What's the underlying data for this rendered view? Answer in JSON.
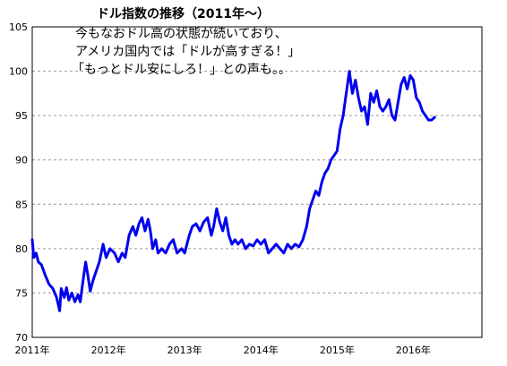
{
  "chart_data": {
    "type": "line",
    "title_lines": [
      "ドル指数の推移（2011年～）",
      "今もなおドル高の状態が続いており、",
      "アメリカ国内では「ドルが高すぎる！」",
      "「もっとドル安にしろ！」との声も。。"
    ],
    "xlabel": "",
    "ylabel": "",
    "ylim": [
      70,
      105
    ],
    "xlim": [
      2011.0,
      2016.9
    ],
    "yticks": [
      "70",
      "75",
      "80",
      "85",
      "90",
      "95",
      "100",
      "105"
    ],
    "xticks": [
      {
        "label": "2011年",
        "value": 2011
      },
      {
        "label": "2012年",
        "value": 2012
      },
      {
        "label": "2013年",
        "value": 2013
      },
      {
        "label": "2014年",
        "value": 2014
      },
      {
        "label": "2015年",
        "value": 2015
      },
      {
        "label": "2016年",
        "value": 2016
      }
    ],
    "grid": "horizontal-dashed",
    "series": [
      {
        "color": "#0000ee",
        "x": [
          2011.0,
          2011.02,
          2011.05,
          2011.08,
          2011.12,
          2011.17,
          2011.22,
          2011.27,
          2011.32,
          2011.36,
          2011.38,
          2011.42,
          2011.45,
          2011.48,
          2011.52,
          2011.56,
          2011.6,
          2011.63,
          2011.66,
          2011.7,
          2011.73,
          2011.76,
          2011.8,
          2011.84,
          2011.88,
          2011.93,
          2011.97,
          2012.02,
          2012.08,
          2012.13,
          2012.18,
          2012.22,
          2012.27,
          2012.32,
          2012.36,
          2012.4,
          2012.44,
          2012.48,
          2012.52,
          2012.55,
          2012.58,
          2012.62,
          2012.65,
          2012.7,
          2012.75,
          2012.8,
          2012.85,
          2012.9,
          2012.96,
          2013.0,
          2013.03,
          2013.06,
          2013.1,
          2013.15,
          2013.2,
          2013.25,
          2013.3,
          2013.35,
          2013.38,
          2013.42,
          2013.46,
          2013.5,
          2013.54,
          2013.58,
          2013.62,
          2013.66,
          2013.7,
          2013.75,
          2013.8,
          2013.85,
          2013.9,
          2013.95,
          2014.0,
          2014.05,
          2014.1,
          2014.15,
          2014.2,
          2014.25,
          2014.3,
          2014.35,
          2014.4,
          2014.45,
          2014.5,
          2014.55,
          2014.6,
          2014.64,
          2014.68,
          2014.72,
          2014.76,
          2014.8,
          2014.84,
          2014.88,
          2014.92,
          2014.96,
          2015.0,
          2015.04,
          2015.08,
          2015.12,
          2015.16,
          2015.2,
          2015.24,
          2015.28,
          2015.32,
          2015.36,
          2015.4,
          2015.44,
          2015.48,
          2015.52,
          2015.56,
          2015.6,
          2015.64,
          2015.68,
          2015.72,
          2015.76,
          2015.8,
          2015.84,
          2015.88,
          2015.92,
          2015.96,
          2016.0,
          2016.04,
          2016.08,
          2016.12,
          2016.16,
          2016.2,
          2016.24,
          2016.28
        ],
        "values": [
          81.0,
          79.0,
          79.5,
          78.5,
          78.2,
          77.0,
          76.0,
          75.5,
          74.5,
          73.0,
          75.5,
          74.5,
          75.6,
          74.2,
          75.0,
          74.0,
          74.8,
          74.0,
          76.0,
          78.5,
          77.0,
          75.2,
          76.5,
          77.5,
          78.5,
          80.5,
          79.0,
          80.0,
          79.5,
          78.5,
          79.5,
          79.0,
          81.5,
          82.5,
          81.5,
          82.8,
          83.5,
          82.0,
          83.3,
          82.0,
          80.0,
          81.0,
          79.5,
          80.0,
          79.5,
          80.5,
          81.0,
          79.5,
          80.0,
          79.5,
          80.5,
          81.5,
          82.5,
          82.8,
          82.0,
          83.0,
          83.5,
          81.5,
          82.5,
          84.5,
          83.0,
          82.0,
          83.5,
          81.5,
          80.5,
          81.0,
          80.5,
          81.0,
          80.0,
          80.5,
          80.3,
          81.0,
          80.5,
          81.0,
          79.5,
          80.0,
          80.5,
          80.0,
          79.5,
          80.5,
          80.0,
          80.5,
          80.2,
          81.0,
          82.5,
          84.5,
          85.5,
          86.5,
          86.0,
          87.5,
          88.5,
          89.0,
          90.0,
          90.5,
          91.0,
          93.5,
          95.0,
          97.5,
          100.0,
          97.5,
          99.0,
          97.0,
          95.5,
          96.0,
          94.0,
          97.5,
          96.5,
          97.8,
          96.0,
          95.5,
          96.0,
          96.8,
          95.0,
          94.5,
          96.5,
          98.5,
          99.3,
          98.0,
          99.5,
          99.0,
          97.0,
          96.5,
          95.5,
          95.0,
          94.5,
          94.5,
          94.8
        ]
      }
    ]
  }
}
